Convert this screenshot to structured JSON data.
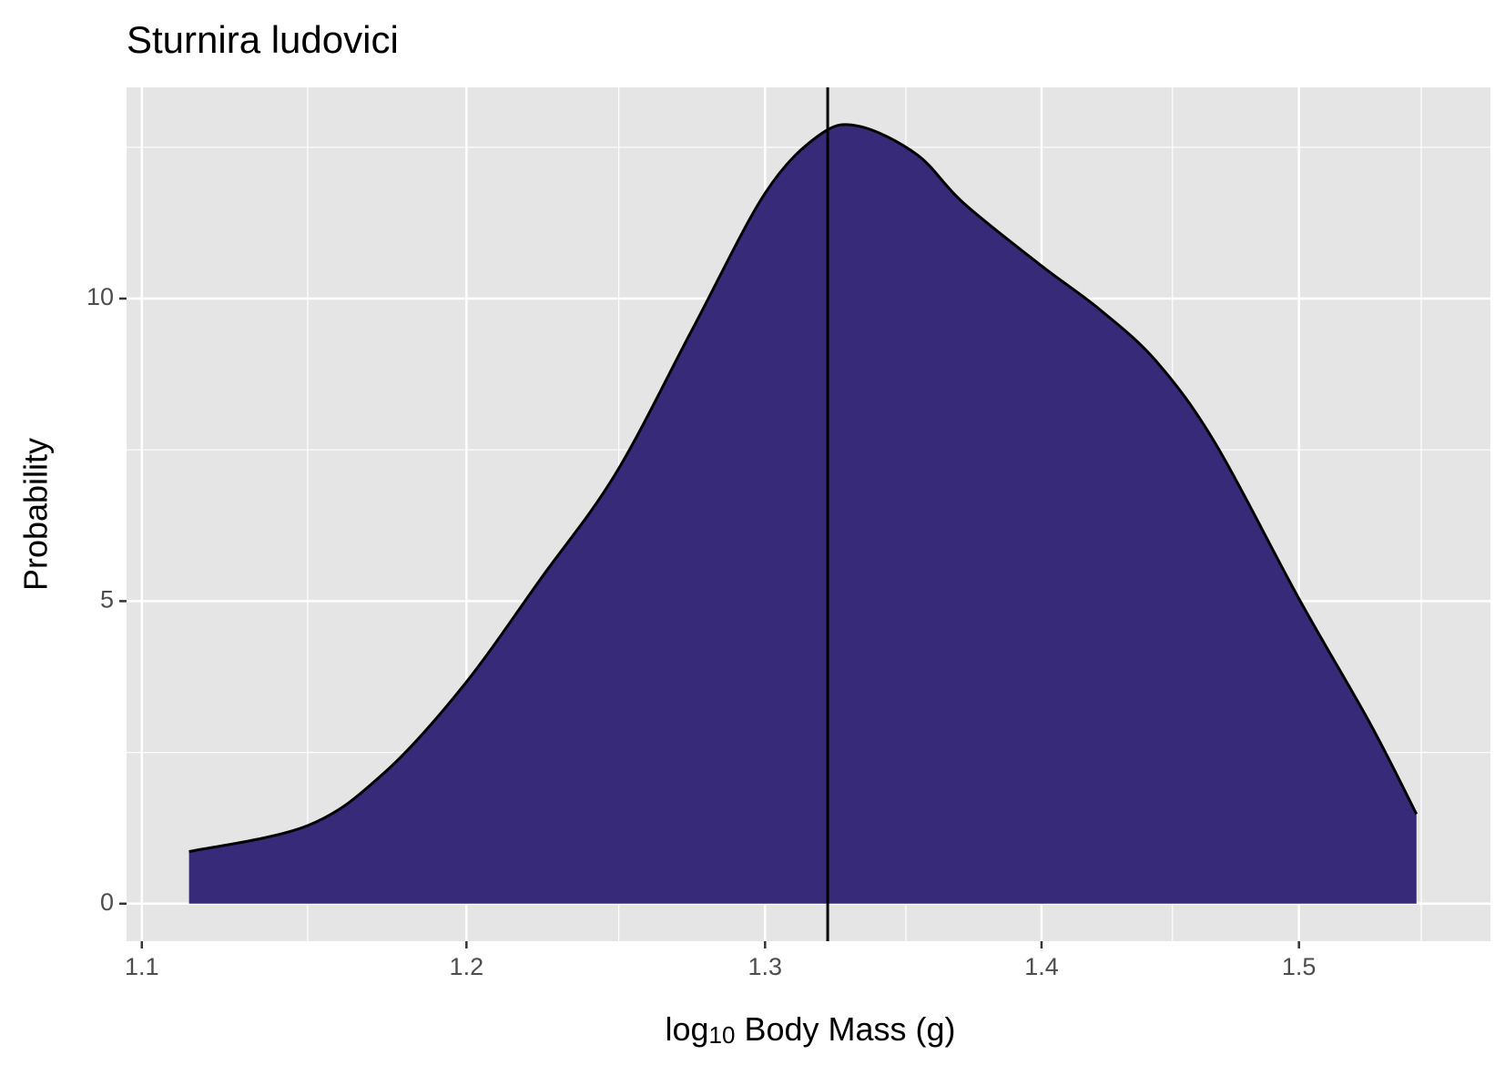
{
  "chart_data": {
    "type": "density",
    "title": "Sturnira ludovici",
    "xlabel": {
      "main": "log",
      "sub": "10",
      "rest": " Body Mass (g)"
    },
    "ylabel": "Probability",
    "xlog": true,
    "x": [
      1.114,
      1.15,
      1.174,
      1.199,
      1.224,
      1.249,
      1.275,
      1.3,
      1.319,
      1.333,
      1.354,
      1.371,
      1.4,
      1.422,
      1.444,
      1.467,
      1.5,
      1.529,
      1.548
    ],
    "values": [
      0.86,
      1.29,
      2.17,
      3.6,
      5.36,
      7.11,
      9.5,
      11.74,
      12.7,
      12.85,
      12.38,
      11.58,
      10.54,
      9.82,
      8.95,
      7.59,
      5.04,
      2.97,
      1.48
    ],
    "color": "#372a79",
    "vline": 1.322,
    "xlim": [
      1.0955,
      1.579
    ],
    "ylim": [
      -0.62,
      13.49
    ],
    "xticks": [
      1.1,
      1.2,
      1.3,
      1.4,
      1.5
    ],
    "yticks": [
      0,
      5,
      10
    ],
    "xminor": [
      1.15,
      1.25,
      1.35,
      1.45,
      1.55
    ],
    "yminor": [
      2.5,
      7.5,
      12.5
    ],
    "grid": true
  }
}
